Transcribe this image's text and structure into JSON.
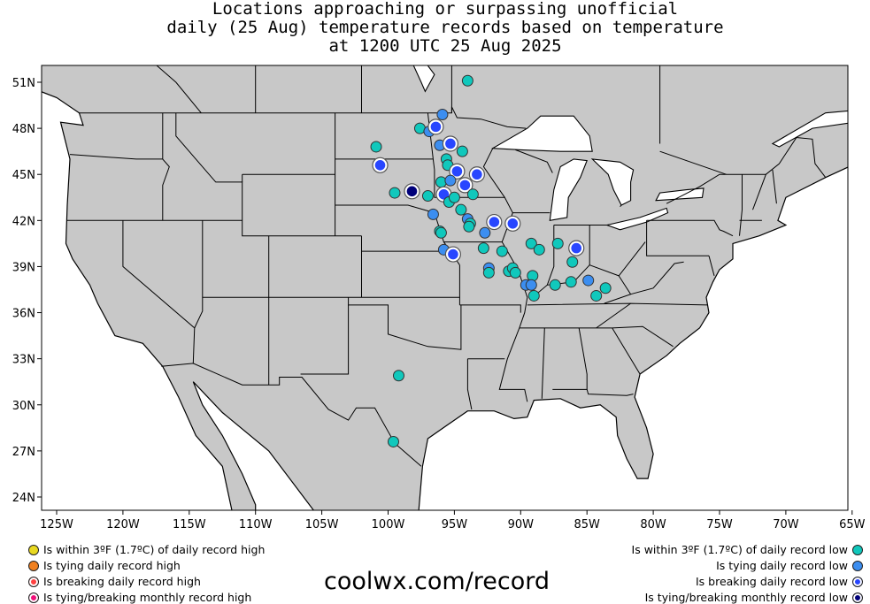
{
  "title": {
    "line1": "Locations approaching or surpassing unofficial",
    "line2": "daily (25 Aug) temperature records based on temperature",
    "line3": "at 1200 UTC 25 Aug 2025"
  },
  "map": {
    "projection": "equirectangular",
    "lon_range": [
      -126,
      -65
    ],
    "lat_range": [
      23,
      52
    ],
    "x_ticks": [
      "125W",
      "120W",
      "115W",
      "110W",
      "105W",
      "100W",
      "95W",
      "90W",
      "85W",
      "80W",
      "75W",
      "70W",
      "65W"
    ],
    "y_ticks": [
      "51N",
      "48N",
      "45N",
      "42N",
      "39N",
      "36N",
      "33N",
      "30N",
      "27N",
      "24N"
    ],
    "colors": {
      "land": "#c8c8c8",
      "water": "#ffffff",
      "border": "#000000"
    }
  },
  "categories": {
    "high_within": {
      "label": "Is within 3ºF (1.7ºC) of daily record high",
      "color": "#e8d820"
    },
    "high_tie": {
      "label": "Is tying daily record high",
      "color": "#f08020"
    },
    "high_break": {
      "label": "Is breaking daily record high",
      "color": "#ff4040"
    },
    "high_month": {
      "label": "Is tying/breaking monthly record high",
      "color": "#f0107a"
    },
    "low_within": {
      "label": "Is within 3ºF (1.7ºC) of daily record low",
      "color": "#10c8bc"
    },
    "low_tie": {
      "label": "Is tying daily record low",
      "color": "#3c8ef0"
    },
    "low_break": {
      "label": "Is breaking daily record low",
      "color": "#2846ff"
    },
    "low_month": {
      "label": "Is tying/breaking monthly record low",
      "color": "#00007a"
    }
  },
  "site": "coolwx.com/record",
  "points": [
    [
      -94.0,
      51.1,
      "low_within"
    ],
    [
      -95.9,
      48.9,
      "low_tie"
    ],
    [
      -97.6,
      48.0,
      "low_within"
    ],
    [
      -96.9,
      47.8,
      "low_tie"
    ],
    [
      -96.4,
      48.1,
      "low_break"
    ],
    [
      -100.9,
      46.8,
      "low_within"
    ],
    [
      -96.1,
      46.9,
      "low_tie"
    ],
    [
      -95.3,
      47.0,
      "low_break"
    ],
    [
      -94.4,
      46.5,
      "low_within"
    ],
    [
      -100.6,
      45.6,
      "low_break"
    ],
    [
      -95.6,
      46.0,
      "low_within"
    ],
    [
      -95.5,
      45.6,
      "low_within"
    ],
    [
      -94.8,
      45.2,
      "low_break"
    ],
    [
      -93.3,
      45.0,
      "low_break"
    ],
    [
      -96.0,
      44.5,
      "low_within"
    ],
    [
      -95.3,
      44.6,
      "low_tie"
    ],
    [
      -94.2,
      44.3,
      "low_break"
    ],
    [
      -99.5,
      43.8,
      "low_within"
    ],
    [
      -98.2,
      43.9,
      "low_month"
    ],
    [
      -97.0,
      43.6,
      "low_within"
    ],
    [
      -95.8,
      43.7,
      "low_break"
    ],
    [
      -95.4,
      43.2,
      "low_within"
    ],
    [
      -95.0,
      43.5,
      "low_within"
    ],
    [
      -93.6,
      43.7,
      "low_within"
    ],
    [
      -96.6,
      42.4,
      "low_tie"
    ],
    [
      -94.5,
      42.7,
      "low_within"
    ],
    [
      -94.0,
      42.1,
      "low_tie"
    ],
    [
      -93.8,
      41.8,
      "low_within"
    ],
    [
      -93.9,
      41.6,
      "low_within"
    ],
    [
      -92.0,
      41.9,
      "low_break"
    ],
    [
      -90.6,
      41.8,
      "low_break"
    ],
    [
      -96.1,
      41.3,
      "low_within"
    ],
    [
      -96.0,
      41.2,
      "low_within"
    ],
    [
      -92.7,
      41.2,
      "low_tie"
    ],
    [
      -89.2,
      40.5,
      "low_within"
    ],
    [
      -88.6,
      40.1,
      "low_within"
    ],
    [
      -87.2,
      40.5,
      "low_within"
    ],
    [
      -85.8,
      40.2,
      "low_break"
    ],
    [
      -95.8,
      40.1,
      "low_tie"
    ],
    [
      -95.1,
      39.8,
      "low_break"
    ],
    [
      -92.8,
      40.2,
      "low_within"
    ],
    [
      -91.4,
      40.0,
      "low_within"
    ],
    [
      -86.1,
      39.3,
      "low_within"
    ],
    [
      -92.4,
      38.9,
      "low_tie"
    ],
    [
      -92.4,
      38.6,
      "low_within"
    ],
    [
      -90.9,
      38.7,
      "low_within"
    ],
    [
      -90.6,
      38.9,
      "low_within"
    ],
    [
      -90.4,
      38.6,
      "low_within"
    ],
    [
      -89.1,
      38.4,
      "low_within"
    ],
    [
      -89.6,
      37.8,
      "low_tie"
    ],
    [
      -89.2,
      37.8,
      "low_tie"
    ],
    [
      -87.4,
      37.8,
      "low_within"
    ],
    [
      -86.2,
      38.0,
      "low_within"
    ],
    [
      -84.9,
      38.1,
      "low_tie"
    ],
    [
      -83.6,
      37.6,
      "low_within"
    ],
    [
      -84.3,
      37.1,
      "low_within"
    ],
    [
      -89.0,
      37.1,
      "low_within"
    ],
    [
      -99.2,
      31.9,
      "low_within"
    ],
    [
      -99.6,
      27.6,
      "low_within"
    ]
  ]
}
